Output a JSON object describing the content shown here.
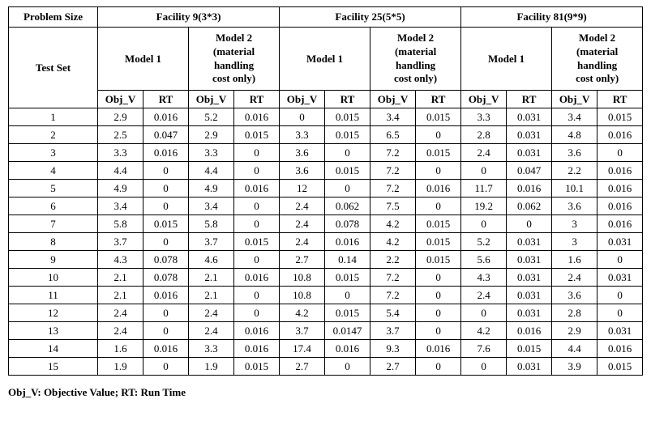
{
  "table": {
    "header": {
      "problem_size": "Problem Size",
      "test_set": "Test Set",
      "facilities": [
        {
          "label": "Facility 9(3*3)"
        },
        {
          "label": "Facility 25(5*5)"
        },
        {
          "label": "Facility 81(9*9)"
        }
      ],
      "model1": "Model 1",
      "model2": "Model 2\n(material\nhandling\ncost only)",
      "obj_v": "Obj_V",
      "rt": "RT"
    },
    "rows": [
      {
        "test_set": "1",
        "values": [
          "2.9",
          "0.016",
          "5.2",
          "0.016",
          "0",
          "0.015",
          "3.4",
          "0.015",
          "3.3",
          "0.031",
          "3.4",
          "0.015"
        ]
      },
      {
        "test_set": "2",
        "values": [
          "2.5",
          "0.047",
          "2.9",
          "0.015",
          "3.3",
          "0.015",
          "6.5",
          "0",
          "2.8",
          "0.031",
          "4.8",
          "0.016"
        ]
      },
      {
        "test_set": "3",
        "values": [
          "3.3",
          "0.016",
          "3.3",
          "0",
          "3.6",
          "0",
          "7.2",
          "0.015",
          "2.4",
          "0.031",
          "3.6",
          "0"
        ]
      },
      {
        "test_set": "4",
        "values": [
          "4.4",
          "0",
          "4.4",
          "0",
          "3.6",
          "0.015",
          "7.2",
          "0",
          "0",
          "0.047",
          "2.2",
          "0.016"
        ]
      },
      {
        "test_set": "5",
        "values": [
          "4.9",
          "0",
          "4.9",
          "0.016",
          "12",
          "0",
          "7.2",
          "0.016",
          "11.7",
          "0.016",
          "10.1",
          "0.016"
        ]
      },
      {
        "test_set": "6",
        "values": [
          "3.4",
          "0",
          "3.4",
          "0",
          "2.4",
          "0.062",
          "7.5",
          "0",
          "19.2",
          "0.062",
          "3.6",
          "0.016"
        ]
      },
      {
        "test_set": "7",
        "values": [
          "5.8",
          "0.015",
          "5.8",
          "0",
          "2.4",
          "0.078",
          "4.2",
          "0.015",
          "0",
          "0",
          "3",
          "0.016"
        ]
      },
      {
        "test_set": "8",
        "values": [
          "3.7",
          "0",
          "3.7",
          "0.015",
          "2.4",
          "0.016",
          "4.2",
          "0.015",
          "5.2",
          "0.031",
          "3",
          "0.031"
        ]
      },
      {
        "test_set": "9",
        "values": [
          "4.3",
          "0.078",
          "4.6",
          "0",
          "2.7",
          "0.14",
          "2.2",
          "0.015",
          "5.6",
          "0.031",
          "1.6",
          "0"
        ]
      },
      {
        "test_set": "10",
        "values": [
          "2.1",
          "0.078",
          "2.1",
          "0.016",
          "10.8",
          "0.015",
          "7.2",
          "0",
          "4.3",
          "0.031",
          "2.4",
          "0.031"
        ]
      },
      {
        "test_set": "11",
        "values": [
          "2.1",
          "0.016",
          "2.1",
          "0",
          "10.8",
          "0",
          "7.2",
          "0",
          "2.4",
          "0.031",
          "3.6",
          "0"
        ]
      },
      {
        "test_set": "12",
        "values": [
          "2.4",
          "0",
          "2.4",
          "0",
          "4.2",
          "0.015",
          "5.4",
          "0",
          "0",
          "0.031",
          "2.8",
          "0"
        ]
      },
      {
        "test_set": "13",
        "values": [
          "2.4",
          "0",
          "2.4",
          "0.016",
          "3.7",
          "0.0147",
          "3.7",
          "0",
          "4.2",
          "0.016",
          "2.9",
          "0.031"
        ]
      },
      {
        "test_set": "14",
        "values": [
          "1.6",
          "0.016",
          "3.3",
          "0.016",
          "17.4",
          "0.016",
          "9.3",
          "0.016",
          "7.6",
          "0.015",
          "4.4",
          "0.016"
        ]
      },
      {
        "test_set": "15",
        "values": [
          "1.9",
          "0",
          "1.9",
          "0.015",
          "2.7",
          "0",
          "2.7",
          "0",
          "0",
          "0.031",
          "3.9",
          "0.015"
        ]
      }
    ]
  },
  "footnote": "Obj_V: Objective Value; RT: Run Time"
}
